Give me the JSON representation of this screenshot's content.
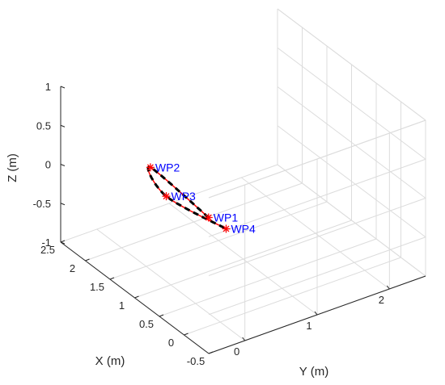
{
  "chart_data": {
    "type": "line3d",
    "title": "",
    "xlabel": "X (m)",
    "ylabel": "Y (m)",
    "zlabel": "Z (m)",
    "xlim": [
      -0.5,
      2.5
    ],
    "ylim": [
      -0.5,
      2.5
    ],
    "zlim": [
      -1,
      1
    ],
    "grid": true,
    "x_ticks": [
      "-0.5",
      "0",
      "0.5",
      "1",
      "1.5",
      "2",
      "2.5"
    ],
    "y_ticks": [
      "0",
      "1",
      "2"
    ],
    "z_ticks": [
      "-1",
      "-0.5",
      "0",
      "0.5",
      "1"
    ],
    "waypoints": [
      {
        "label": "WP1",
        "x": 1.7,
        "y": 1.0,
        "z": -0.8
      },
      {
        "label": "WP2",
        "x": 2.0,
        "y": 0.4,
        "z": -0.1
      },
      {
        "label": "WP3",
        "x": 0.8,
        "y": -0.2,
        "z": 0.3
      },
      {
        "label": "WP4",
        "x": 0.1,
        "y": 0.15,
        "z": 0.1
      }
    ],
    "series": [
      {
        "style": "solid",
        "color": "#ff0000"
      },
      {
        "style": "dashed",
        "color": "#000000"
      }
    ],
    "marker": "*",
    "marker_color": "#ff0000",
    "label_color": "#0000ff"
  }
}
